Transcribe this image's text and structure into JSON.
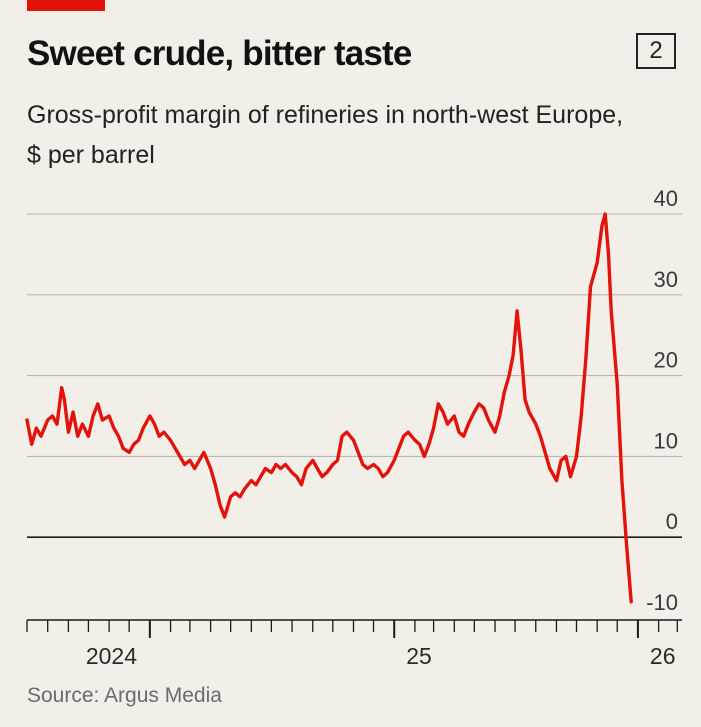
{
  "header": {
    "title": "Sweet crude, bitter taste",
    "chart_number": "2",
    "subtitle": "Gross-profit margin of refineries in north-west Europe, $ per barrel"
  },
  "footer": {
    "source": "Source: Argus Media"
  },
  "colors": {
    "line": "#e3120b",
    "grid": "#b7b6b0",
    "zero": "#1a1a1a",
    "background": "#f1efe7"
  },
  "chart_data": {
    "type": "line",
    "title": "Sweet crude, bitter taste",
    "subtitle": "Gross-profit margin of refineries in north-west Europe, $ per barrel",
    "xlabel": "",
    "ylabel": "",
    "ylim": [
      -10,
      40
    ],
    "yticks": [
      40,
      30,
      20,
      10,
      0,
      -10
    ],
    "xlim": [
      "2023-07-01",
      "2026-03-20"
    ],
    "x_tick_labels": [
      {
        "label": "2024",
        "date": "2024-01-01"
      },
      {
        "label": "25",
        "date": "2025-01-01"
      },
      {
        "label": "26",
        "date": "2026-01-01"
      }
    ],
    "grid": true,
    "y_axis_side": "right",
    "source": "Source: Argus Media",
    "series": [
      {
        "points": [
          [
            "2023-07-01",
            14.5
          ],
          [
            "2023-07-08",
            11.5
          ],
          [
            "2023-07-15",
            13.5
          ],
          [
            "2023-07-22",
            12.5
          ],
          [
            "2023-08-01",
            14.5
          ],
          [
            "2023-08-08",
            15.0
          ],
          [
            "2023-08-15",
            14.0
          ],
          [
            "2023-08-22",
            18.5
          ],
          [
            "2023-08-26",
            17.0
          ],
          [
            "2023-09-01",
            13.0
          ],
          [
            "2023-09-08",
            15.5
          ],
          [
            "2023-09-15",
            12.5
          ],
          [
            "2023-09-22",
            14.0
          ],
          [
            "2023-10-01",
            12.5
          ],
          [
            "2023-10-08",
            15.0
          ],
          [
            "2023-10-15",
            16.5
          ],
          [
            "2023-10-22",
            14.5
          ],
          [
            "2023-11-01",
            15.0
          ],
          [
            "2023-11-08",
            13.5
          ],
          [
            "2023-11-15",
            12.5
          ],
          [
            "2023-11-22",
            11.0
          ],
          [
            "2023-12-01",
            10.5
          ],
          [
            "2023-12-08",
            11.5
          ],
          [
            "2023-12-15",
            12.0
          ],
          [
            "2023-12-22",
            13.5
          ],
          [
            "2024-01-01",
            15.0
          ],
          [
            "2024-01-08",
            14.0
          ],
          [
            "2024-01-15",
            12.5
          ],
          [
            "2024-01-22",
            13.0
          ],
          [
            "2024-02-01",
            12.0
          ],
          [
            "2024-02-08",
            11.0
          ],
          [
            "2024-02-15",
            10.0
          ],
          [
            "2024-02-22",
            9.0
          ],
          [
            "2024-03-01",
            9.5
          ],
          [
            "2024-03-08",
            8.5
          ],
          [
            "2024-03-15",
            9.5
          ],
          [
            "2024-03-22",
            10.5
          ],
          [
            "2024-04-01",
            8.5
          ],
          [
            "2024-04-08",
            6.5
          ],
          [
            "2024-04-15",
            4.0
          ],
          [
            "2024-04-22",
            2.5
          ],
          [
            "2024-05-01",
            5.0
          ],
          [
            "2024-05-08",
            5.5
          ],
          [
            "2024-05-15",
            5.0
          ],
          [
            "2024-05-22",
            6.0
          ],
          [
            "2024-06-01",
            7.0
          ],
          [
            "2024-06-08",
            6.5
          ],
          [
            "2024-06-15",
            7.5
          ],
          [
            "2024-06-22",
            8.5
          ],
          [
            "2024-07-01",
            8.0
          ],
          [
            "2024-07-08",
            9.0
          ],
          [
            "2024-07-15",
            8.5
          ],
          [
            "2024-07-22",
            9.0
          ],
          [
            "2024-08-01",
            8.0
          ],
          [
            "2024-08-08",
            7.5
          ],
          [
            "2024-08-15",
            6.5
          ],
          [
            "2024-08-22",
            8.5
          ],
          [
            "2024-09-01",
            9.5
          ],
          [
            "2024-09-08",
            8.5
          ],
          [
            "2024-09-15",
            7.5
          ],
          [
            "2024-09-22",
            8.0
          ],
          [
            "2024-10-01",
            9.0
          ],
          [
            "2024-10-08",
            9.5
          ],
          [
            "2024-10-15",
            12.5
          ],
          [
            "2024-10-22",
            13.0
          ],
          [
            "2024-11-01",
            12.0
          ],
          [
            "2024-11-08",
            10.5
          ],
          [
            "2024-11-15",
            9.0
          ],
          [
            "2024-11-22",
            8.5
          ],
          [
            "2024-12-01",
            9.0
          ],
          [
            "2024-12-08",
            8.5
          ],
          [
            "2024-12-15",
            7.5
          ],
          [
            "2024-12-22",
            8.0
          ],
          [
            "2025-01-01",
            9.5
          ],
          [
            "2025-01-08",
            11.0
          ],
          [
            "2025-01-15",
            12.5
          ],
          [
            "2025-01-22",
            13.0
          ],
          [
            "2025-02-01",
            12.0
          ],
          [
            "2025-02-08",
            11.5
          ],
          [
            "2025-02-15",
            10.0
          ],
          [
            "2025-02-22",
            11.5
          ],
          [
            "2025-03-01",
            13.5
          ],
          [
            "2025-03-08",
            16.5
          ],
          [
            "2025-03-15",
            15.5
          ],
          [
            "2025-03-22",
            14.0
          ],
          [
            "2025-04-01",
            15.0
          ],
          [
            "2025-04-08",
            13.0
          ],
          [
            "2025-04-15",
            12.5
          ],
          [
            "2025-04-22",
            14.0
          ],
          [
            "2025-05-01",
            15.5
          ],
          [
            "2025-05-08",
            16.5
          ],
          [
            "2025-05-15",
            16.0
          ],
          [
            "2025-05-22",
            14.5
          ],
          [
            "2025-06-01",
            13.0
          ],
          [
            "2025-06-08",
            15.0
          ],
          [
            "2025-06-15",
            18.0
          ],
          [
            "2025-06-22",
            20.0
          ],
          [
            "2025-06-28",
            22.5
          ],
          [
            "2025-07-04",
            28.0
          ],
          [
            "2025-07-10",
            23.0
          ],
          [
            "2025-07-16",
            17.0
          ],
          [
            "2025-07-22",
            15.5
          ],
          [
            "2025-08-01",
            14.0
          ],
          [
            "2025-08-08",
            12.5
          ],
          [
            "2025-08-15",
            10.5
          ],
          [
            "2025-08-22",
            8.5
          ],
          [
            "2025-09-01",
            7.0
          ],
          [
            "2025-09-08",
            9.5
          ],
          [
            "2025-09-15",
            10.0
          ],
          [
            "2025-09-22",
            7.5
          ],
          [
            "2025-10-01",
            10.0
          ],
          [
            "2025-10-08",
            15.0
          ],
          [
            "2025-10-15",
            22.0
          ],
          [
            "2025-10-22",
            31.0
          ],
          [
            "2025-11-01",
            34.0
          ],
          [
            "2025-11-08",
            38.5
          ],
          [
            "2025-11-13",
            40.0
          ],
          [
            "2025-11-18",
            35.0
          ],
          [
            "2025-11-22",
            28.0
          ],
          [
            "2025-12-01",
            19.0
          ],
          [
            "2025-12-08",
            7.0
          ],
          [
            "2025-12-15",
            -1.0
          ],
          [
            "2025-12-22",
            -8.0
          ]
        ]
      }
    ]
  }
}
